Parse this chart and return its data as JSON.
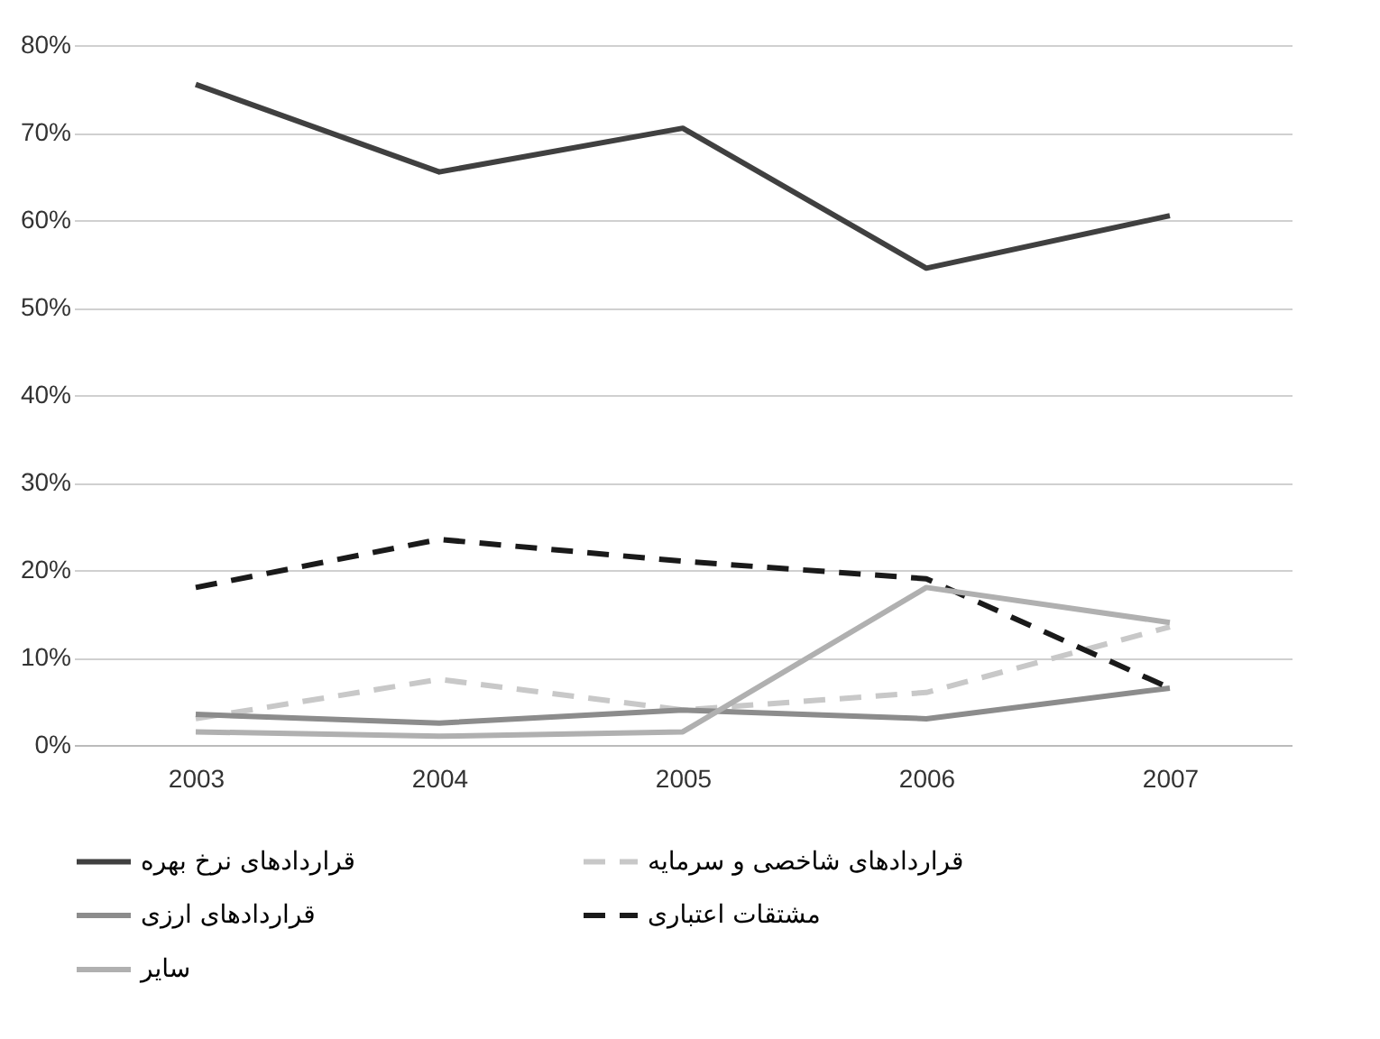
{
  "chart_data": {
    "type": "line",
    "categories": [
      "2003",
      "2004",
      "2005",
      "2006",
      "2007"
    ],
    "series": [
      {
        "name": "قراردادهای نرخ بهره",
        "color": "#404040",
        "line_style": "solid",
        "values": [
          75.5,
          65.5,
          70.5,
          54.5,
          60.5
        ]
      },
      {
        "name": "قراردادهای شاخصی و سرمایه",
        "color": "#c8c8c8",
        "line_style": "dashed",
        "values": [
          3,
          7.5,
          4,
          6,
          13.5
        ]
      },
      {
        "name": "قراردادهای ارزی",
        "color": "#8c8c8c",
        "line_style": "solid",
        "values": [
          3.5,
          2.5,
          4,
          3,
          6.5
        ]
      },
      {
        "name": "مشتقات اعتباری",
        "color": "#1a1a1a",
        "line_style": "dashed",
        "values": [
          18,
          23.5,
          21,
          19,
          6.5
        ]
      },
      {
        "name": "سایر",
        "color": "#b0b0b0",
        "line_style": "solid",
        "values": [
          1.5,
          1,
          1.5,
          18,
          14
        ]
      }
    ],
    "ylim": [
      0,
      80
    ],
    "yticks": [
      {
        "value": 0,
        "label": "0%"
      },
      {
        "value": 10,
        "label": "10%"
      },
      {
        "value": 20,
        "label": "20%"
      },
      {
        "value": 30,
        "label": "30%"
      },
      {
        "value": 40,
        "label": "40%"
      },
      {
        "value": 50,
        "label": "50%"
      },
      {
        "value": 60,
        "label": "60%"
      },
      {
        "value": 70,
        "label": "70%"
      },
      {
        "value": 80,
        "label": "80%"
      }
    ],
    "grid": "y",
    "legend": "bottom"
  }
}
